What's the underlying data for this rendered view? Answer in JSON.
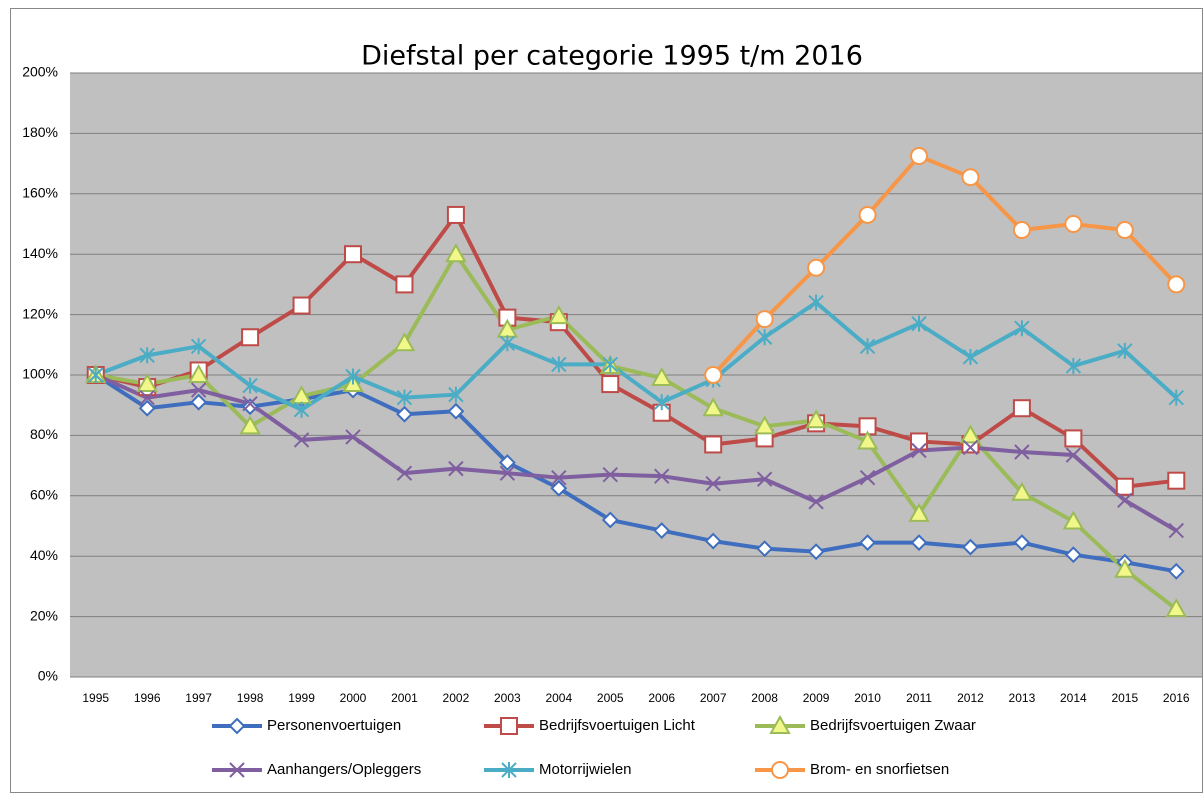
{
  "chart_data": {
    "type": "line",
    "title": "Diefstal per categorie 1995 t/m 2016",
    "categories": [
      "1995",
      "1996",
      "1997",
      "1998",
      "1999",
      "2000",
      "2001",
      "2002",
      "2003",
      "2004",
      "2005",
      "2006",
      "2007",
      "2008",
      "2009",
      "2010",
      "2011",
      "2012",
      "2013",
      "2014",
      "2015",
      "2016"
    ],
    "series": [
      {
        "name": "Personenvoertuigen",
        "color": "#3f6ebf",
        "marker": "diamond",
        "values": [
          100,
          89,
          91,
          89.5,
          92,
          95,
          87,
          88,
          71,
          62.5,
          52,
          48.5,
          45,
          42.5,
          41.5,
          44.5,
          44.5,
          43,
          44.5,
          40.5,
          38,
          35
        ]
      },
      {
        "name": "Bedrijfsvoertuigen Licht",
        "color": "#be4b48",
        "marker": "square",
        "values": [
          100,
          96,
          101.5,
          112.5,
          123,
          140,
          130,
          153,
          119,
          117.5,
          97,
          87.5,
          77,
          79,
          84,
          83,
          78,
          77,
          89,
          79,
          63,
          65
        ]
      },
      {
        "name": "Bedrijfsvoertuigen Zwaar",
        "color": "#9bbb59",
        "marker": "triangle",
        "values": [
          100,
          97,
          100,
          83,
          93,
          97,
          110.5,
          140,
          115,
          119.5,
          103,
          99,
          89,
          83,
          85,
          78,
          54,
          80,
          61,
          51.5,
          35.5,
          22.5
        ]
      },
      {
        "name": "Aanhangers/Opleggers",
        "color": "#7f5fa0",
        "marker": "x",
        "values": [
          100,
          92.5,
          95,
          90.5,
          78.5,
          79.5,
          67.5,
          69,
          67.5,
          66,
          67,
          66.5,
          64,
          65.5,
          58,
          66,
          75,
          76,
          74.5,
          73.5,
          58.5,
          48.5
        ]
      },
      {
        "name": "Motorrijwielen",
        "color": "#4bacc6",
        "marker": "star",
        "values": [
          100,
          106.5,
          109.5,
          96.5,
          88.5,
          99.5,
          92.5,
          93.5,
          110.5,
          103.5,
          103.5,
          91,
          98.5,
          112.5,
          124,
          109.5,
          117,
          106,
          115.5,
          103,
          108,
          92.5
        ]
      },
      {
        "name": "Brom- en snorfietsen",
        "color": "#f79646",
        "marker": "circle",
        "values": [
          null,
          null,
          null,
          null,
          null,
          null,
          null,
          null,
          null,
          null,
          null,
          null,
          100,
          118.5,
          135.5,
          153,
          172.5,
          165.5,
          148,
          150,
          148,
          130
        ]
      }
    ],
    "ylim": [
      0,
      200
    ],
    "yticks": [
      {
        "value": 0,
        "label": "0%"
      },
      {
        "value": 20,
        "label": "20%"
      },
      {
        "value": 40,
        "label": "40%"
      },
      {
        "value": 60,
        "label": "60%"
      },
      {
        "value": 80,
        "label": "80%"
      },
      {
        "value": 100,
        "label": "100%"
      },
      {
        "value": 120,
        "label": "120%"
      },
      {
        "value": 140,
        "label": "140%"
      },
      {
        "value": 160,
        "label": "160%"
      },
      {
        "value": 180,
        "label": "180%"
      },
      {
        "value": 200,
        "label": "200%"
      }
    ],
    "grid": true,
    "legend": "bottom"
  }
}
